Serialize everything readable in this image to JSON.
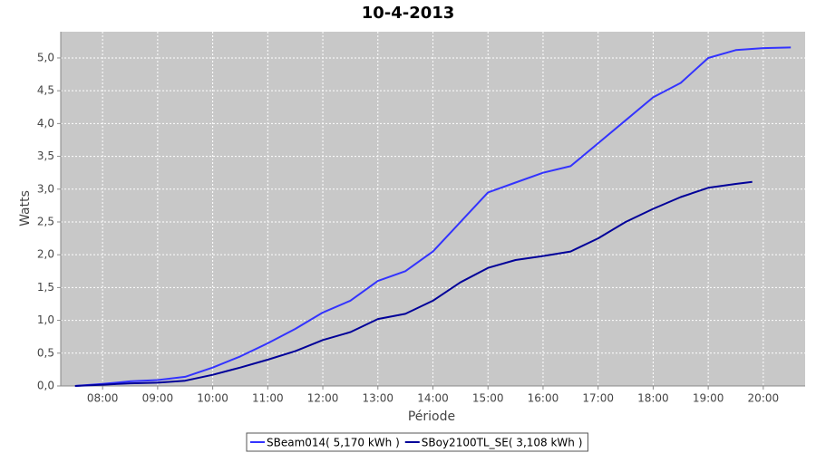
{
  "chart_data": {
    "type": "line",
    "title": "10-4-2013",
    "x_label": "Période",
    "y_label": "Watts",
    "xlim": [
      7.24,
      20.76
    ],
    "xticks": [
      {
        "value": 8,
        "label": "08:00"
      },
      {
        "value": 9,
        "label": "09:00"
      },
      {
        "value": 10,
        "label": "10:00"
      },
      {
        "value": 11,
        "label": "11:00"
      },
      {
        "value": 12,
        "label": "12:00"
      },
      {
        "value": 13,
        "label": "13:00"
      },
      {
        "value": 14,
        "label": "14:00"
      },
      {
        "value": 15,
        "label": "15:00"
      },
      {
        "value": 16,
        "label": "16:00"
      },
      {
        "value": 17,
        "label": "17:00"
      },
      {
        "value": 18,
        "label": "18:00"
      },
      {
        "value": 19,
        "label": "19:00"
      },
      {
        "value": 20,
        "label": "20:00"
      }
    ],
    "ylim": [
      0,
      5.4
    ],
    "yticks": [
      {
        "value": 0,
        "label": "0,0"
      },
      {
        "value": 0.5,
        "label": "0,5"
      },
      {
        "value": 1,
        "label": "1,0"
      },
      {
        "value": 1.5,
        "label": "1,5"
      },
      {
        "value": 2,
        "label": "2,0"
      },
      {
        "value": 2.5,
        "label": "2,5"
      },
      {
        "value": 3,
        "label": "3,0"
      },
      {
        "value": 3.5,
        "label": "3,5"
      },
      {
        "value": 4,
        "label": "4,0"
      },
      {
        "value": 4.5,
        "label": "4,5"
      },
      {
        "value": 5,
        "label": "5,0"
      }
    ],
    "grid": true,
    "legend": "bottom",
    "series": [
      {
        "name": "SBeam014( 5,170 kWh )",
        "color": "#3333ff",
        "x": [
          7.5,
          8,
          8.5,
          9,
          9.5,
          10,
          10.5,
          11,
          11.5,
          12,
          12.5,
          13,
          13.5,
          14,
          14.5,
          15,
          15.5,
          16,
          16.5,
          17,
          17.5,
          18,
          18.5,
          19,
          19.5,
          20,
          20.5
        ],
        "values": [
          0.0,
          0.03,
          0.07,
          0.09,
          0.14,
          0.28,
          0.45,
          0.65,
          0.87,
          1.12,
          1.3,
          1.6,
          1.75,
          2.05,
          2.5,
          2.95,
          3.1,
          3.25,
          3.35,
          3.7,
          4.05,
          4.4,
          4.62,
          5.0,
          5.12,
          5.15,
          5.16
        ]
      },
      {
        "name": "SBoy2100TL_SE( 3,108 kWh )",
        "color": "#000099",
        "x": [
          7.5,
          8,
          8.5,
          9,
          9.5,
          10,
          10.5,
          11,
          11.5,
          12,
          12.5,
          13,
          13.5,
          14,
          14.5,
          15,
          15.5,
          16,
          16.5,
          17,
          17.5,
          18,
          18.5,
          19,
          19.5,
          19.8
        ],
        "values": [
          0.0,
          0.02,
          0.04,
          0.05,
          0.08,
          0.17,
          0.28,
          0.4,
          0.53,
          0.7,
          0.82,
          1.02,
          1.1,
          1.3,
          1.58,
          1.8,
          1.92,
          1.98,
          2.05,
          2.25,
          2.5,
          2.7,
          2.88,
          3.02,
          3.08,
          3.11
        ]
      }
    ]
  }
}
